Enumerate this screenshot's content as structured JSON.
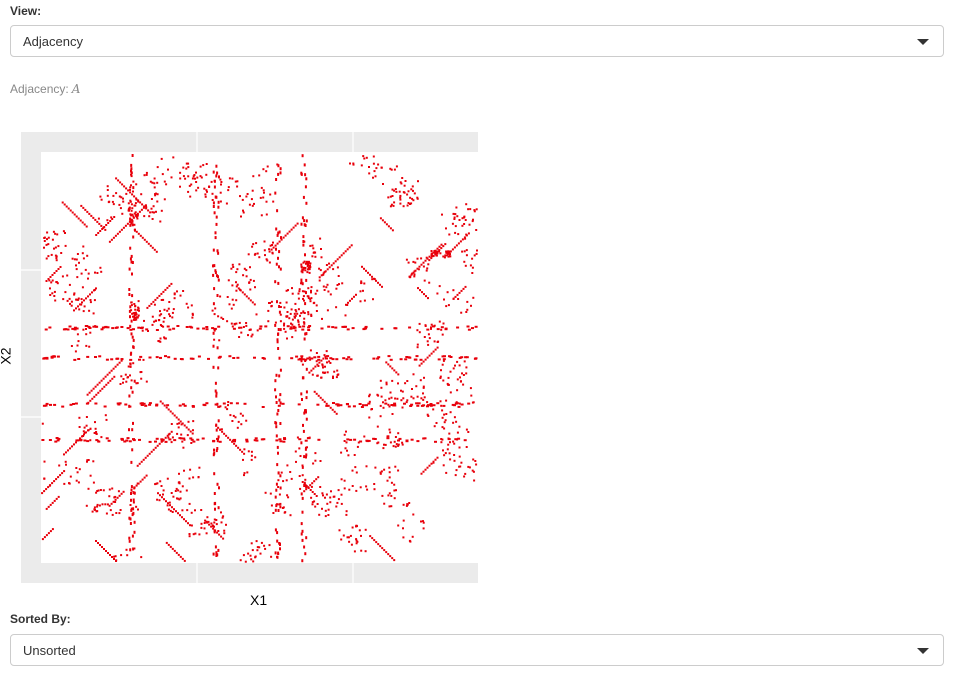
{
  "view": {
    "label": "View:",
    "selected": "Adjacency"
  },
  "caption": {
    "prefix": "Adjacency:",
    "symbol": "A"
  },
  "plot": {
    "xlabel": "X1",
    "ylabel": "X2",
    "mark_color": "#e8000b",
    "panel_background": "#ebebeb",
    "grid_color": "#ffffff"
  },
  "sorted_by": {
    "label": "Sorted By:",
    "selected": "Unsorted"
  }
}
